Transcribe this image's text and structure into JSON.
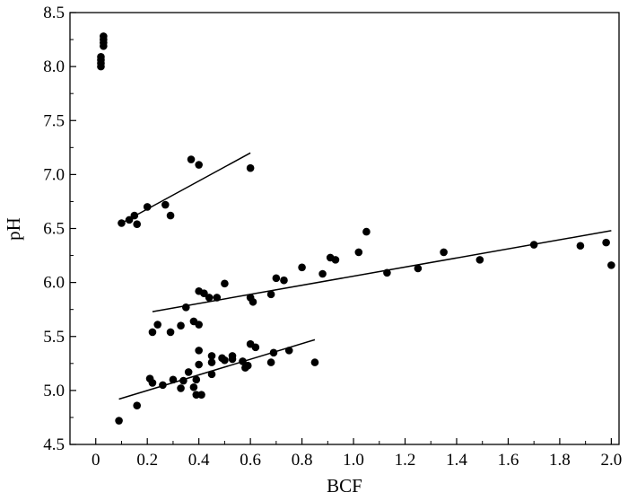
{
  "chart_data": {
    "type": "scatter",
    "title": "",
    "xlabel": "BCF",
    "ylabel": "pH",
    "xlim": [
      -0.1,
      2.03
    ],
    "ylim": [
      4.5,
      8.5
    ],
    "x_ticks": [
      "0",
      "0.2",
      "0.4",
      "0.6",
      "0.8",
      "1.0",
      "1.2",
      "1.4",
      "1.6",
      "1.8",
      "2.0"
    ],
    "x_tick_values": [
      0,
      0.2,
      0.4,
      0.6,
      0.8,
      1.0,
      1.2,
      1.4,
      1.6,
      1.8,
      2.0
    ],
    "y_ticks": [
      "4.5",
      "5.0",
      "5.5",
      "6.0",
      "6.5",
      "7.0",
      "7.5",
      "8.0",
      "8.5"
    ],
    "y_tick_values": [
      4.5,
      5.0,
      5.5,
      6.0,
      6.5,
      7.0,
      7.5,
      8.0,
      8.5
    ],
    "grid": false,
    "legend": "none",
    "marker_color": "#000000",
    "series": [
      {
        "points": [
          [
            0.03,
            8.28
          ],
          [
            0.03,
            8.25
          ],
          [
            0.03,
            8.22
          ],
          [
            0.03,
            8.19
          ],
          [
            0.02,
            8.09
          ],
          [
            0.02,
            8.06
          ],
          [
            0.02,
            8.03
          ],
          [
            0.02,
            8.0
          ]
        ]
      },
      {
        "points": [
          [
            0.1,
            6.55
          ],
          [
            0.13,
            6.58
          ],
          [
            0.15,
            6.62
          ],
          [
            0.16,
            6.54
          ],
          [
            0.2,
            6.7
          ],
          [
            0.27,
            6.72
          ],
          [
            0.29,
            6.62
          ],
          [
            0.37,
            7.14
          ],
          [
            0.4,
            7.09
          ],
          [
            0.6,
            7.06
          ]
        ],
        "trend": [
          [
            0.1,
            6.55
          ],
          [
            0.6,
            7.2
          ]
        ]
      },
      {
        "points": [
          [
            0.22,
            5.54
          ],
          [
            0.24,
            5.61
          ],
          [
            0.29,
            5.54
          ],
          [
            0.33,
            5.6
          ],
          [
            0.35,
            5.77
          ],
          [
            0.38,
            5.64
          ],
          [
            0.4,
            5.61
          ],
          [
            0.4,
            5.92
          ],
          [
            0.42,
            5.9
          ],
          [
            0.44,
            5.86
          ],
          [
            0.47,
            5.86
          ],
          [
            0.5,
            5.99
          ],
          [
            0.6,
            5.86
          ],
          [
            0.61,
            5.82
          ],
          [
            0.68,
            5.89
          ],
          [
            0.7,
            6.04
          ],
          [
            0.73,
            6.02
          ],
          [
            0.8,
            6.14
          ],
          [
            0.88,
            6.08
          ],
          [
            0.91,
            6.23
          ],
          [
            0.93,
            6.21
          ],
          [
            1.02,
            6.28
          ],
          [
            1.05,
            6.47
          ],
          [
            1.13,
            6.09
          ],
          [
            1.25,
            6.13
          ],
          [
            1.35,
            6.28
          ],
          [
            1.49,
            6.21
          ],
          [
            1.7,
            6.35
          ],
          [
            1.88,
            6.34
          ],
          [
            1.98,
            6.37
          ],
          [
            2.0,
            6.16
          ]
        ],
        "trend": [
          [
            0.22,
            5.73
          ],
          [
            2.0,
            6.48
          ]
        ]
      },
      {
        "points": [
          [
            0.09,
            4.72
          ],
          [
            0.16,
            4.86
          ],
          [
            0.21,
            5.11
          ],
          [
            0.22,
            5.07
          ],
          [
            0.26,
            5.05
          ],
          [
            0.3,
            5.1
          ],
          [
            0.33,
            5.02
          ],
          [
            0.34,
            5.09
          ],
          [
            0.36,
            5.17
          ],
          [
            0.38,
            5.03
          ],
          [
            0.39,
            5.1
          ],
          [
            0.39,
            4.96
          ],
          [
            0.41,
            4.96
          ],
          [
            0.4,
            5.24
          ],
          [
            0.4,
            5.37
          ],
          [
            0.45,
            5.26
          ],
          [
            0.45,
            5.32
          ],
          [
            0.45,
            5.15
          ],
          [
            0.49,
            5.3
          ],
          [
            0.5,
            5.28
          ],
          [
            0.53,
            5.29
          ],
          [
            0.53,
            5.32
          ],
          [
            0.57,
            5.27
          ],
          [
            0.58,
            5.21
          ],
          [
            0.59,
            5.23
          ],
          [
            0.6,
            5.43
          ],
          [
            0.62,
            5.4
          ],
          [
            0.68,
            5.26
          ],
          [
            0.69,
            5.35
          ],
          [
            0.75,
            5.37
          ],
          [
            0.85,
            5.26
          ]
        ],
        "trend": [
          [
            0.09,
            4.92
          ],
          [
            0.85,
            5.47
          ]
        ]
      }
    ]
  }
}
